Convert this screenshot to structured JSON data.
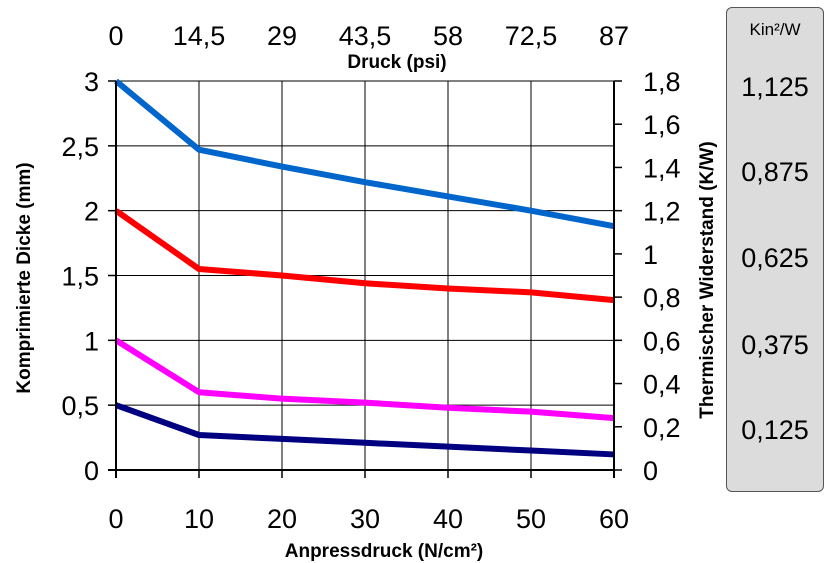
{
  "chart_data": {
    "type": "line",
    "xlabel": "Anpressdruck (N/cm²)",
    "x_ticks": [
      "0",
      "10",
      "20",
      "30",
      "40",
      "50",
      "60"
    ],
    "xlim": [
      0,
      60
    ],
    "x2label": "Druck (psi)",
    "x2_ticks": [
      "0",
      "14,5",
      "29",
      "43,5",
      "58",
      "72,5",
      "87"
    ],
    "ylabel": "Komprimierte Dicke (mm)",
    "y_ticks": [
      "0",
      "0,5",
      "1",
      "1,5",
      "2",
      "2,5",
      "3"
    ],
    "ylim": [
      0,
      3
    ],
    "y2label": "Thermischer Widerstand (K/W)",
    "y2_ticks": [
      "0",
      "0,2",
      "0,4",
      "0,6",
      "0,8",
      "1",
      "1,2",
      "1,4",
      "1,6",
      "1,8"
    ],
    "y2lim": [
      0,
      1.8
    ],
    "y3_title": "Kin²/W",
    "y3_ticks": [
      "1,125",
      "0,875",
      "0,625",
      "0,375",
      "0,125"
    ],
    "grid": true,
    "x": [
      0,
      10,
      20,
      30,
      40,
      50,
      60
    ],
    "series": [
      {
        "color": "#0066cc",
        "values": [
          3.0,
          2.47,
          2.34,
          2.22,
          2.11,
          2.0,
          1.88
        ]
      },
      {
        "color": "#ff0000",
        "values": [
          2.0,
          1.55,
          1.5,
          1.44,
          1.4,
          1.37,
          1.31
        ]
      },
      {
        "color": "#ff00ff",
        "values": [
          1.0,
          0.6,
          0.55,
          0.52,
          0.48,
          0.45,
          0.4
        ]
      },
      {
        "color": "#000080",
        "values": [
          0.5,
          0.27,
          0.24,
          0.21,
          0.18,
          0.15,
          0.12
        ]
      }
    ]
  }
}
